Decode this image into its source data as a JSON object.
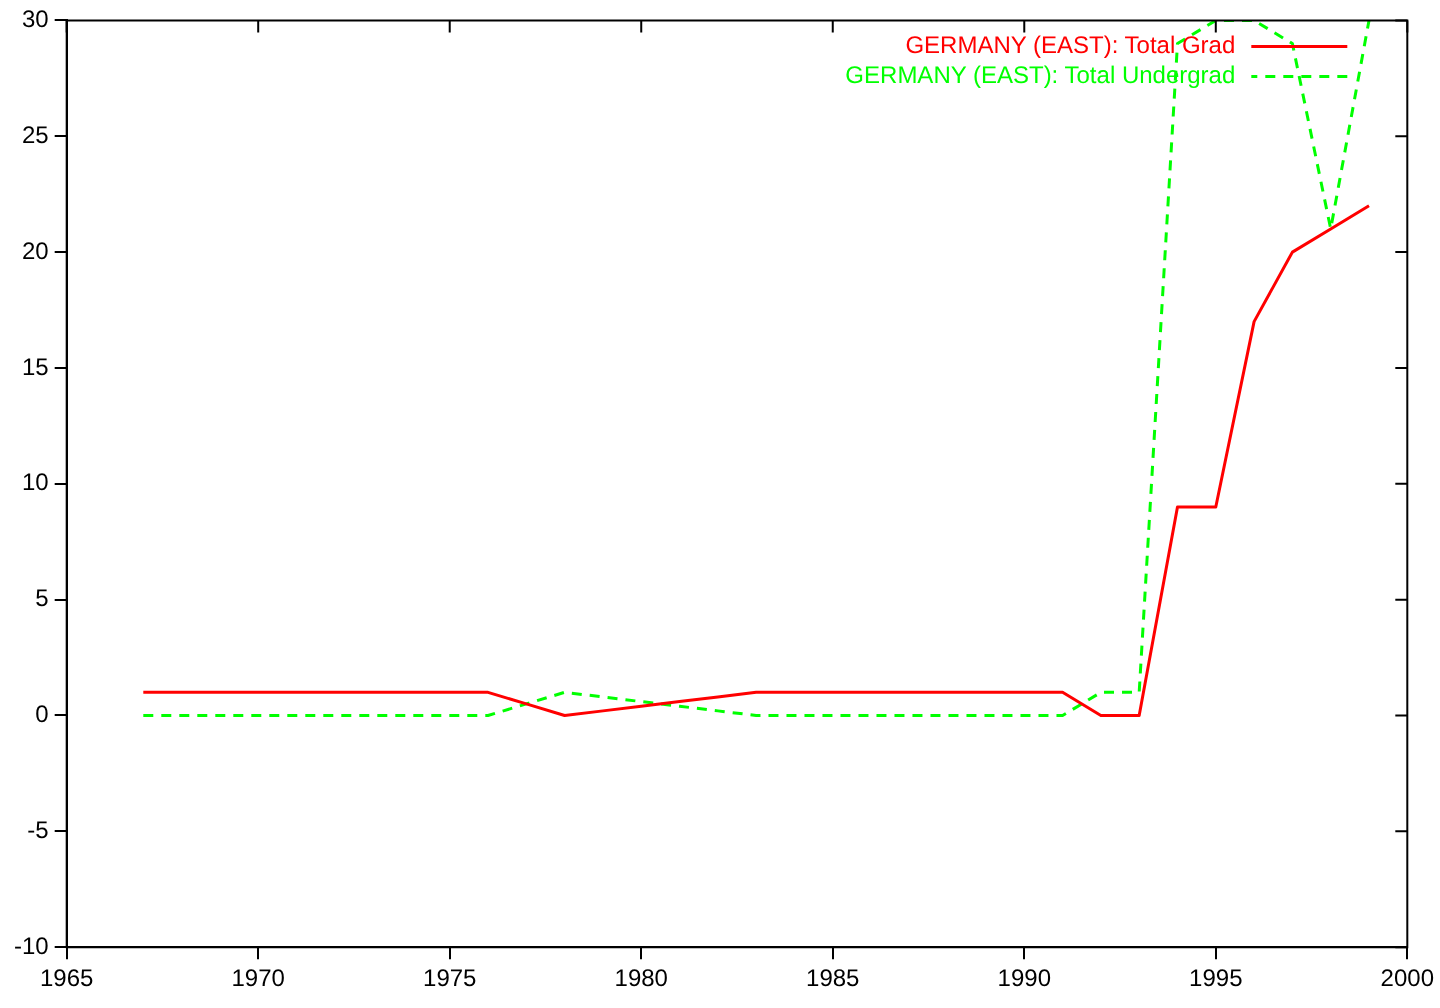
{
  "chart_data": {
    "type": "line",
    "x": [
      1967,
      1968,
      1969,
      1970,
      1971,
      1972,
      1973,
      1974,
      1975,
      1976,
      1977,
      1978,
      1979,
      1980,
      1981,
      1982,
      1983,
      1984,
      1985,
      1986,
      1987,
      1988,
      1989,
      1990,
      1991,
      1992,
      1993,
      1994,
      1995,
      1996,
      1997,
      1998,
      1999
    ],
    "series": [
      {
        "name": "GERMANY (EAST): Total Grad",
        "color": "#ff0000",
        "line_style": "solid",
        "values": [
          1,
          1,
          1,
          1,
          1,
          1,
          1,
          1,
          1,
          1,
          0.5,
          0,
          0.2,
          0.4,
          0.6,
          0.8,
          1,
          1,
          1,
          1,
          1,
          1,
          1,
          1,
          1,
          0,
          0,
          9,
          9,
          17,
          20,
          21,
          22
        ]
      },
      {
        "name": "GERMANY (EAST): Total Undergrad",
        "color": "#00ff00",
        "line_style": "dashed",
        "values": [
          0,
          0,
          0,
          0,
          0,
          0,
          0,
          0,
          0,
          0,
          0.5,
          1,
          0.8,
          0.6,
          0.4,
          0.2,
          0,
          0,
          0,
          0,
          0,
          0,
          0,
          0,
          0,
          1,
          1,
          29,
          30,
          30,
          29,
          21,
          30
        ]
      }
    ],
    "xlim": [
      1965,
      2000
    ],
    "xticks": [
      1965,
      1970,
      1975,
      1980,
      1985,
      1990,
      1995,
      2000
    ],
    "ylim": [
      -10,
      30
    ],
    "yticks": [
      -10,
      -5,
      0,
      5,
      10,
      15,
      20,
      25,
      30
    ],
    "grid": false,
    "legend": "top right",
    "marker": "none"
  }
}
